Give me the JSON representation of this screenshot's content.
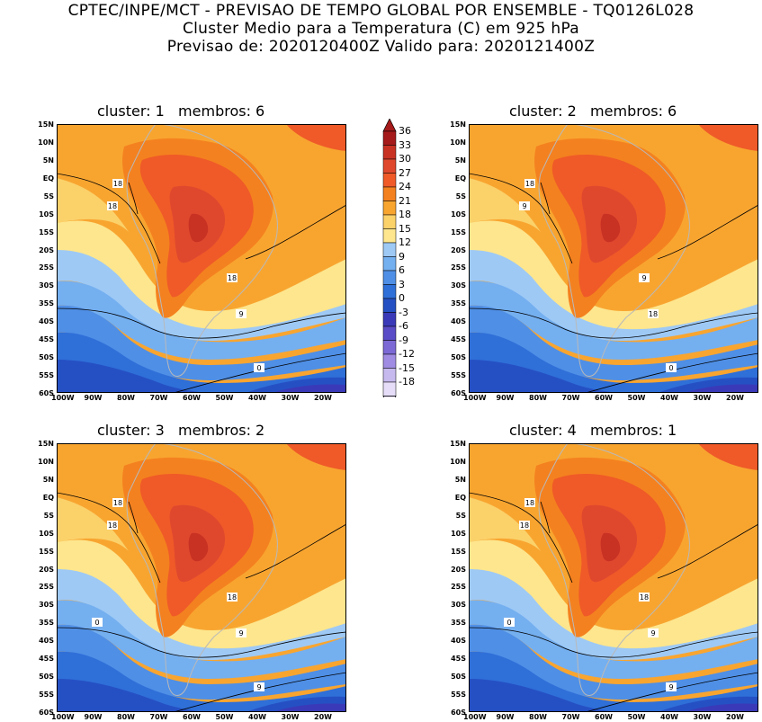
{
  "header": {
    "line1": "CPTEC/INPE/MCT - PREVISAO DE TEMPO GLOBAL POR ENSEMBLE - TQ0126L028",
    "line2": "Cluster Medio para a Temperatura (C) em 925 hPa",
    "line3": "Previsao de: 2020120400Z   Valido para: 2020121400Z"
  },
  "panels": [
    {
      "title": "cluster: 1   membros: 6",
      "contour_labels": [
        "18",
        "18",
        "18",
        "9",
        "0"
      ]
    },
    {
      "title": "cluster: 2   membros: 6",
      "contour_labels": [
        "18",
        "9",
        "9",
        "18",
        "0"
      ]
    },
    {
      "title": "cluster: 3   membros: 2",
      "contour_labels": [
        "18",
        "18",
        "18",
        "9",
        "9",
        "0"
      ]
    },
    {
      "title": "cluster: 4   membros: 1",
      "contour_labels": [
        "18",
        "18",
        "18",
        "9",
        "9",
        "0"
      ]
    }
  ],
  "lat_labels": [
    "15N",
    "10N",
    "5N",
    "EQ",
    "5S",
    "10S",
    "15S",
    "20S",
    "25S",
    "30S",
    "35S",
    "40S",
    "45S",
    "50S",
    "55S",
    "60S"
  ],
  "lon_labels": [
    "100W",
    "90W",
    "80W",
    "70W",
    "60W",
    "50W",
    "40W",
    "30W",
    "20W"
  ],
  "colorbar": {
    "labels": [
      "36",
      "33",
      "30",
      "27",
      "24",
      "21",
      "18",
      "15",
      "12",
      "9",
      "6",
      "3",
      "0",
      "-3",
      "-6",
      "-9",
      "-12",
      "-15",
      "-18"
    ],
    "colors": [
      "#a51a1a",
      "#c83223",
      "#e0482e",
      "#ef5a28",
      "#f4811f",
      "#f8a530",
      "#fbd16a",
      "#fde68e",
      "#9ec9f5",
      "#74aff0",
      "#4f8fe6",
      "#2f6fd8",
      "#2550c4",
      "#3a3ab8",
      "#5a4cc6",
      "#7d69d6",
      "#a08ce2",
      "#c6b9ee",
      "#e6def8"
    ]
  }
}
